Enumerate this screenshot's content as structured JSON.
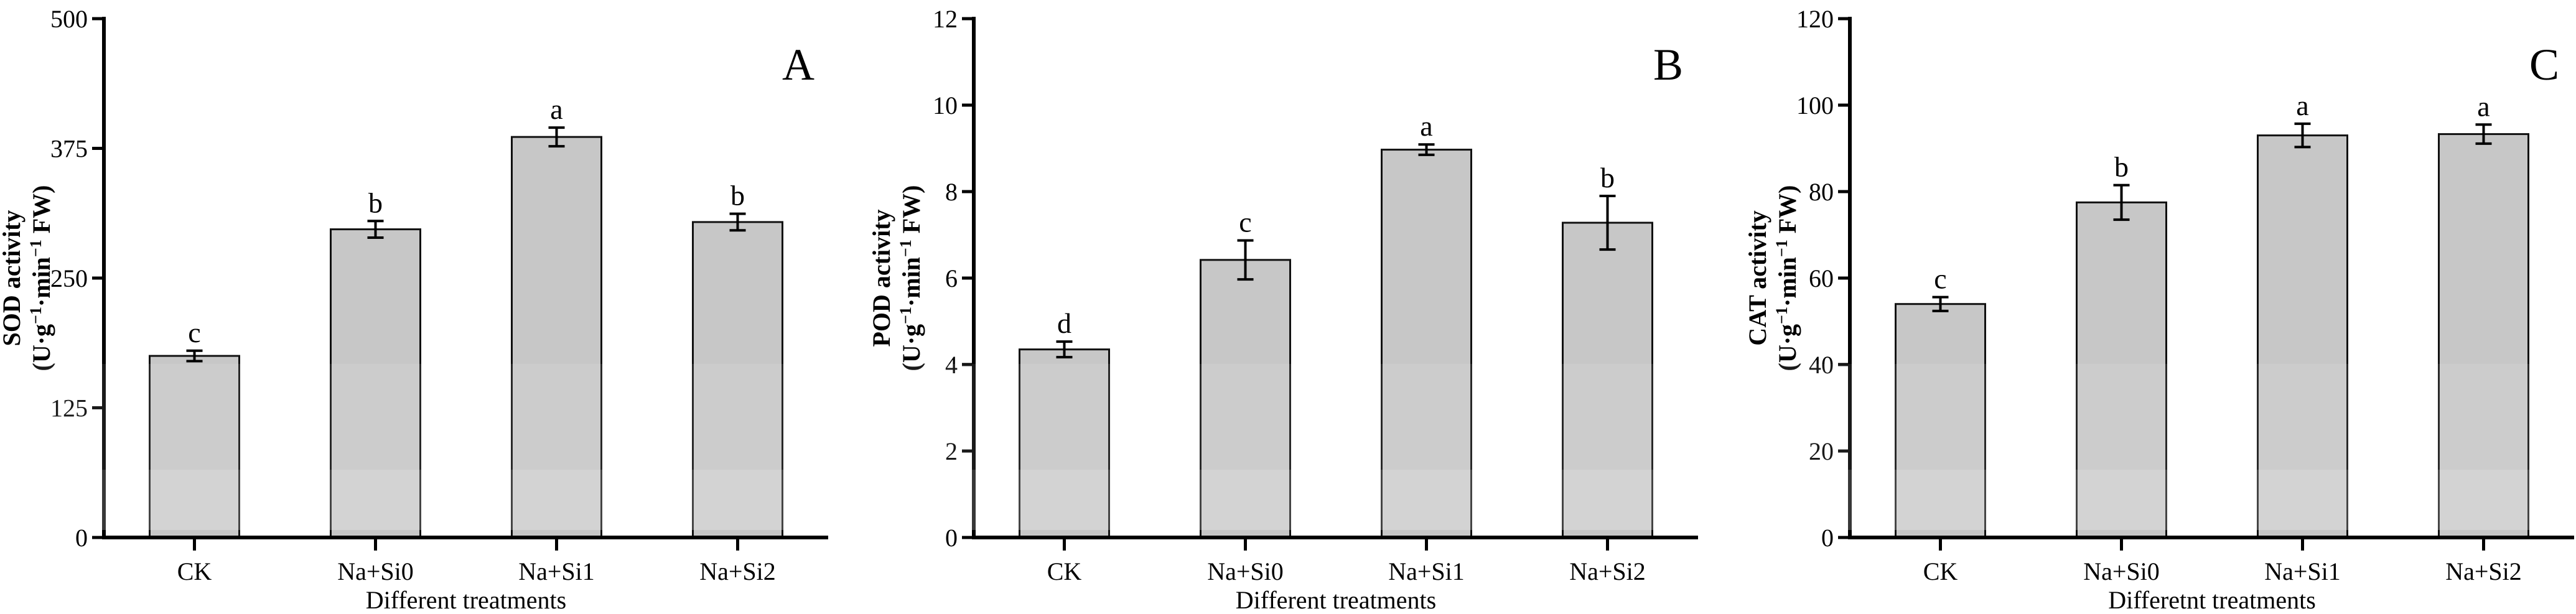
{
  "figure_title": "",
  "bar_fill_color": "#c7c7c7",
  "bar_stroke_color": "#111111",
  "axis_color": "#000000",
  "background_color": "#ffffff",
  "chart_data": [
    {
      "type": "bar",
      "panel_label": "A",
      "title": "",
      "ylabel_line1": "SOD activity",
      "ylabel_line2": "(U·g^{−1}·min^{−1} FW)",
      "xlabel": "Different treatments",
      "categories": [
        "CK",
        "Na+Si0",
        "Na+Si1",
        "Na+Si2"
      ],
      "values": [
        175,
        297,
        386,
        304
      ],
      "errors": [
        5,
        8,
        9,
        8
      ],
      "sig_letters": [
        "c",
        "b",
        "a",
        "b"
      ],
      "ylim": [
        0,
        500
      ],
      "yticks": [
        0,
        125,
        250,
        375,
        500
      ],
      "grid": "off",
      "legend": "none"
    },
    {
      "type": "bar",
      "panel_label": "B",
      "title": "",
      "ylabel_line1": "POD activity",
      "ylabel_line2": "(U·g^{−1}·min^{−1} FW)",
      "xlabel": "Different treatments",
      "categories": [
        "CK",
        "Na+Si0",
        "Na+Si1",
        "Na+Si2"
      ],
      "values": [
        4.35,
        6.42,
        8.97,
        7.28
      ],
      "errors": [
        0.18,
        0.45,
        0.12,
        0.62
      ],
      "sig_letters": [
        "d",
        "c",
        "a",
        "b"
      ],
      "ylim": [
        0,
        12
      ],
      "yticks": [
        0,
        2,
        4,
        6,
        8,
        10,
        12
      ],
      "grid": "off",
      "legend": "none"
    },
    {
      "type": "bar",
      "panel_label": "C",
      "title": "",
      "ylabel_line1": "CAT activity",
      "ylabel_line2": "(U·g^{−1}·min^{−1} FW)",
      "xlabel": "Differetnt treatments",
      "categories": [
        "CK",
        "Na+Si0",
        "Na+Si1",
        "Na+Si2"
      ],
      "values": [
        54,
        77.5,
        93,
        93.3
      ],
      "errors": [
        1.6,
        4,
        2.7,
        2.2
      ],
      "sig_letters": [
        "c",
        "b",
        "a",
        "a"
      ],
      "ylim": [
        0,
        120
      ],
      "yticks": [
        0,
        20,
        40,
        60,
        80,
        100,
        120
      ],
      "grid": "off",
      "legend": "none"
    }
  ]
}
